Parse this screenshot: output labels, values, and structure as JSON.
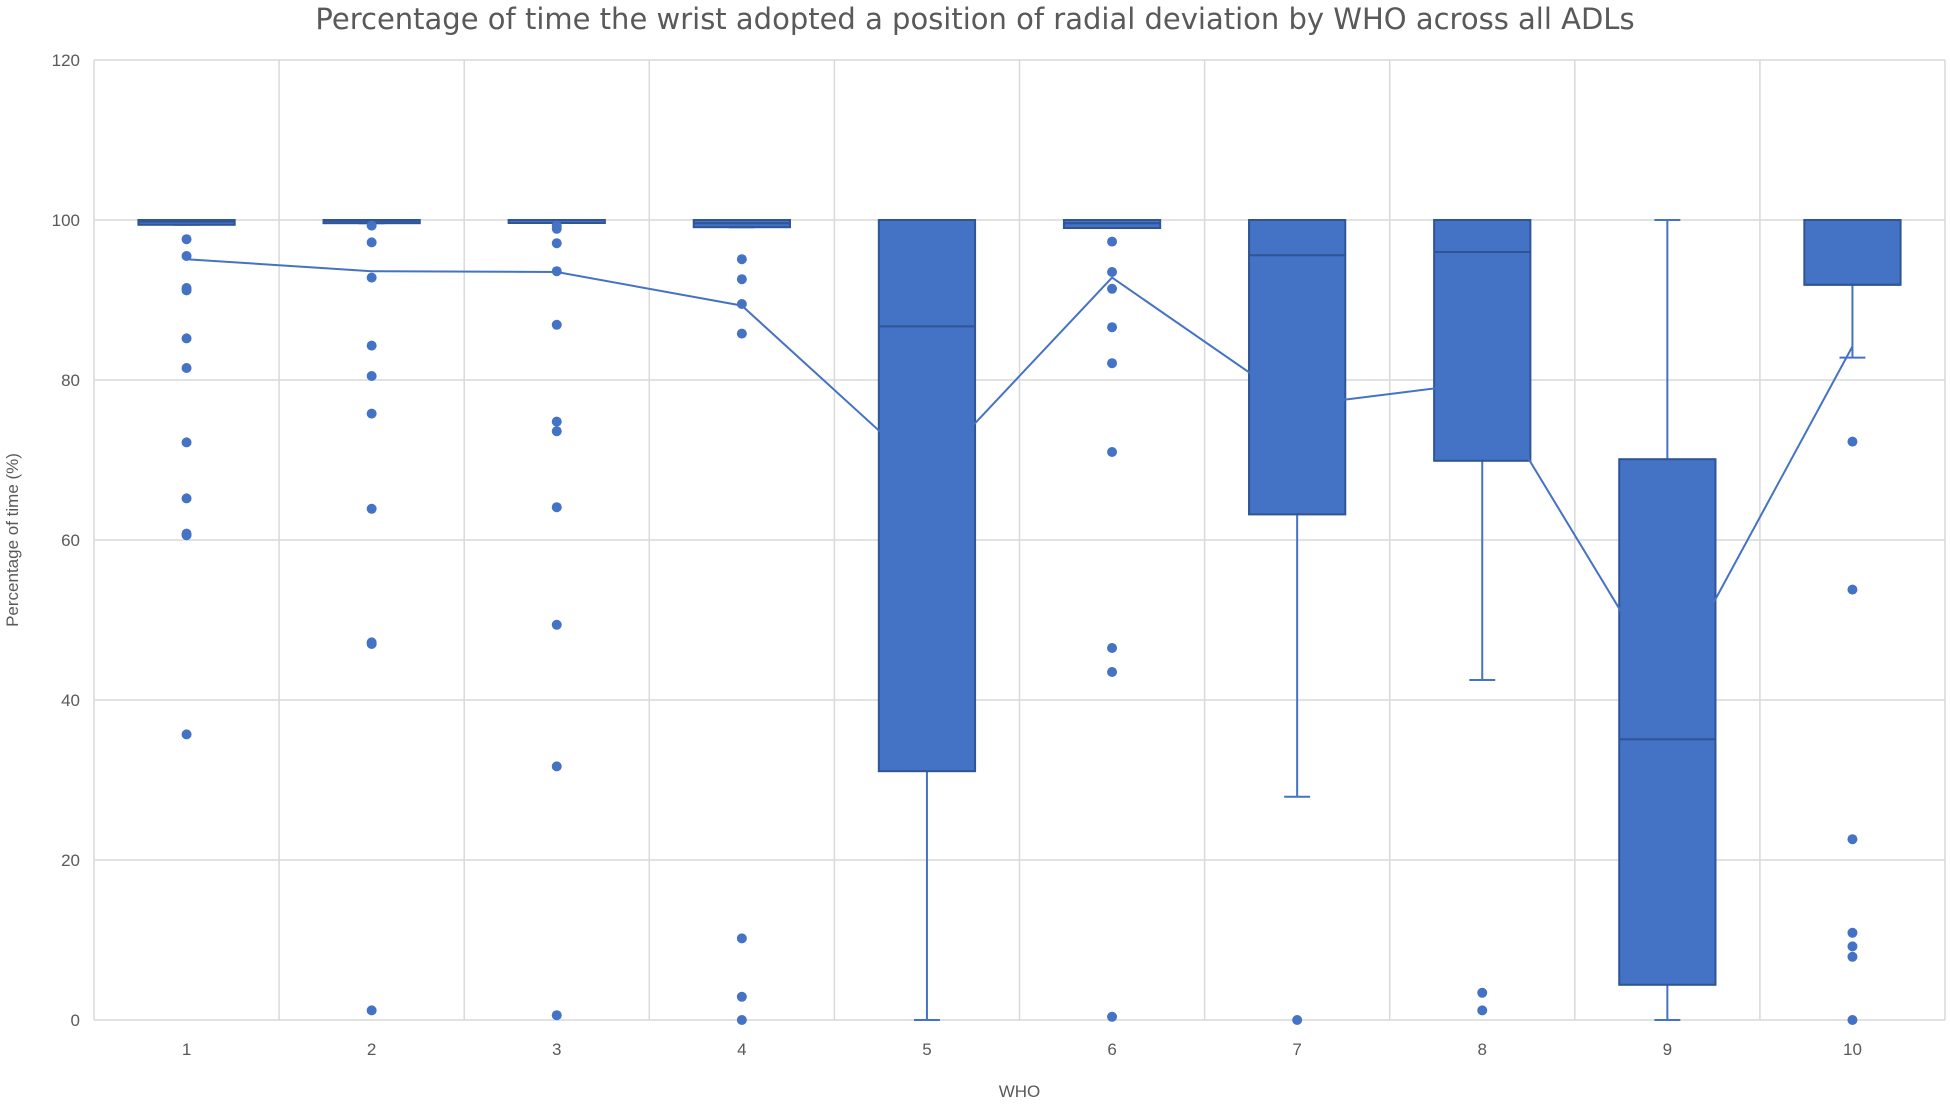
{
  "chart_data": {
    "type": "box",
    "title": "Percentage of time the wrist adopted a position of radial deviation by WHO across all ADLs",
    "xlabel": "WHO",
    "ylabel": "Percentage of time (%)",
    "ylim": [
      0,
      120
    ],
    "y_ticks": [
      0,
      20,
      40,
      60,
      80,
      100,
      120
    ],
    "grid": true,
    "color": "#4472C4",
    "categories": [
      "1",
      "2",
      "3",
      "4",
      "5",
      "6",
      "7",
      "8",
      "9",
      "10"
    ],
    "boxes": [
      {
        "category": "1",
        "min": 99.4,
        "q1": 99.4,
        "median": 99.8,
        "q3": 100,
        "max": 100,
        "mean": 95.1,
        "outliers": [
          97.6,
          95.5,
          91.5,
          91.2,
          85.2,
          81.5,
          72.2,
          65.2,
          60.8,
          60.6,
          35.7
        ]
      },
      {
        "category": "2",
        "min": 99.6,
        "q1": 99.6,
        "median": 99.9,
        "q3": 100,
        "max": 100,
        "mean": 93.6,
        "outliers": [
          99.3,
          97.2,
          92.8,
          84.3,
          80.5,
          75.8,
          63.9,
          47.2,
          47.0,
          1.2
        ]
      },
      {
        "category": "3",
        "min": 99.7,
        "q1": 99.7,
        "median": 100,
        "q3": 100,
        "max": 100,
        "mean": 93.5,
        "outliers": [
          99.3,
          98.9,
          97.1,
          93.6,
          86.9,
          74.8,
          73.6,
          64.1,
          49.4,
          31.7,
          0.6
        ]
      },
      {
        "category": "4",
        "min": 99.1,
        "q1": 99.1,
        "median": 99.6,
        "q3": 100,
        "max": 100,
        "mean": 89.3,
        "outliers": [
          95.1,
          92.6,
          89.5,
          85.8,
          10.2,
          2.9,
          0
        ]
      },
      {
        "category": "5",
        "min": 0,
        "q1": 31.1,
        "median": 86.7,
        "q3": 100,
        "max": 100,
        "mean": 68.2,
        "outliers": []
      },
      {
        "category": "6",
        "min": 99.0,
        "q1": 99.0,
        "median": 99.6,
        "q3": 100,
        "max": 100,
        "mean": 92.8,
        "outliers": [
          97.3,
          93.5,
          91.4,
          86.6,
          82.1,
          71.0,
          46.5,
          43.5,
          0.4
        ]
      },
      {
        "category": "7",
        "min": 27.9,
        "q1": 63.2,
        "median": 95.6,
        "q3": 100,
        "max": 100,
        "mean": 76.8,
        "outliers": [
          0
        ]
      },
      {
        "category": "8",
        "min": 42.5,
        "q1": 69.9,
        "median": 96.0,
        "q3": 100,
        "max": 100,
        "mean": 79.7,
        "outliers": [
          3.4,
          1.2
        ]
      },
      {
        "category": "9",
        "min": 0,
        "q1": 4.4,
        "median": 35.1,
        "q3": 70.1,
        "max": 100,
        "mean": 41.5,
        "outliers": []
      },
      {
        "category": "10",
        "min": 82.8,
        "q1": 91.9,
        "median": 91.9,
        "q3": 100,
        "max": 100,
        "mean": 84.2,
        "outliers": [
          72.3,
          53.8,
          22.6,
          10.9,
          9.2,
          7.9,
          0
        ]
      }
    ]
  }
}
